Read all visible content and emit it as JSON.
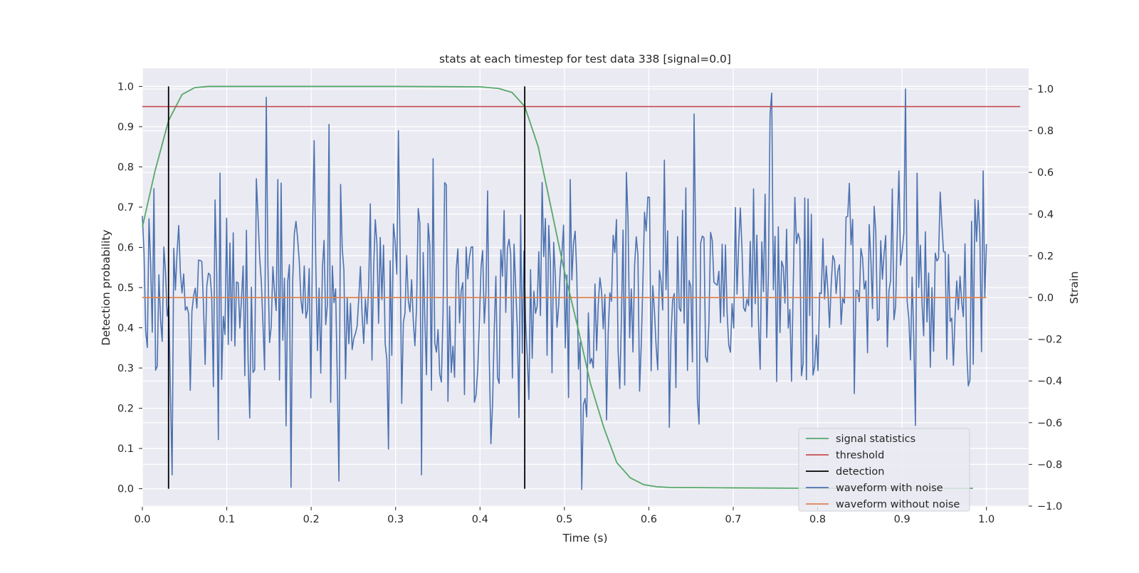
{
  "chart_data": {
    "type": "line",
    "title": "stats at each timestep for test data 338 [signal=0.0]",
    "xlabel": "Time (s)",
    "ylabel": "Detection probability",
    "ylabel_right": "Strain",
    "xlim": [
      0.0,
      1.05
    ],
    "ylim": [
      -0.045,
      1.045
    ],
    "ylim_right": [
      -1.0,
      1.0
    ],
    "xticks": [
      "0.0",
      "0.1",
      "0.2",
      "0.3",
      "0.4",
      "0.5",
      "0.6",
      "0.7",
      "0.8",
      "0.9",
      "1.0"
    ],
    "yticks": [
      "0.0",
      "0.1",
      "0.2",
      "0.3",
      "0.4",
      "0.5",
      "0.6",
      "0.7",
      "0.8",
      "0.9",
      "1.0"
    ],
    "yticks_right": [
      "1.0",
      "0.8",
      "0.6",
      "0.4",
      "0.2",
      "0.0",
      "−0.2",
      "−0.4",
      "−0.6",
      "−0.8",
      "−1.0"
    ],
    "grid": true,
    "legend_position": "lower-right",
    "colors": {
      "signal_statistics": "#55a868",
      "threshold": "#c44e52",
      "detection": "#000000",
      "waveform_with_noise": "#4c72b0",
      "waveform_without_noise": "#dd8452",
      "plot_bg": "#eaeaf2"
    },
    "legend": [
      {
        "label": "signal statistics",
        "color": "#55a868"
      },
      {
        "label": "threshold",
        "color": "#c44e52"
      },
      {
        "label": "detection",
        "color": "#000000"
      },
      {
        "label": "waveform with noise",
        "color": "#4c72b0"
      },
      {
        "label": "waveform without noise",
        "color": "#dd8452"
      }
    ],
    "signal_statistics": {
      "x": [
        0.0,
        0.015,
        0.031,
        0.047,
        0.062,
        0.078,
        0.1,
        0.2,
        0.3,
        0.4,
        0.422,
        0.438,
        0.453,
        0.469,
        0.484,
        0.5,
        0.516,
        0.531,
        0.547,
        0.562,
        0.578,
        0.594,
        0.609,
        0.625,
        0.7,
        0.8,
        0.9,
        0.984
      ],
      "y": [
        0.65,
        0.79,
        0.915,
        0.98,
        0.997,
        1.0,
        1.0,
        1.0,
        1.0,
        0.999,
        0.995,
        0.985,
        0.95,
        0.85,
        0.7,
        0.54,
        0.4,
        0.26,
        0.15,
        0.065,
        0.027,
        0.01,
        0.005,
        0.003,
        0.002,
        0.001,
        0.001,
        0.001
      ]
    },
    "threshold": {
      "y": 0.95,
      "x": [
        0.0,
        1.04
      ]
    },
    "detections": [
      {
        "x": 0.031,
        "y": [
          0.0,
          1.0
        ]
      },
      {
        "x": 0.453,
        "y": [
          0.0,
          1.0
        ]
      }
    ],
    "waveform_with_noise": {
      "x_start": 0.0,
      "x_end": 1.0,
      "n_points": 512,
      "seed": 338,
      "std": 0.3,
      "peaks": [
        {
          "x": 0.146,
          "y": 0.96
        },
        {
          "x": 0.221,
          "y": 0.83
        },
        {
          "x": 0.745,
          "y": 0.98
        },
        {
          "x": 0.905,
          "y": 1.0
        },
        {
          "x": 0.177,
          "y": -0.91
        },
        {
          "x": 0.036,
          "y": -0.85
        },
        {
          "x": 0.52,
          "y": -0.92
        },
        {
          "x": 0.33,
          "y": -0.85
        }
      ]
    },
    "waveform_without_noise": {
      "x": [
        0.0,
        1.0
      ],
      "y": [
        0.0,
        0.0
      ]
    }
  }
}
